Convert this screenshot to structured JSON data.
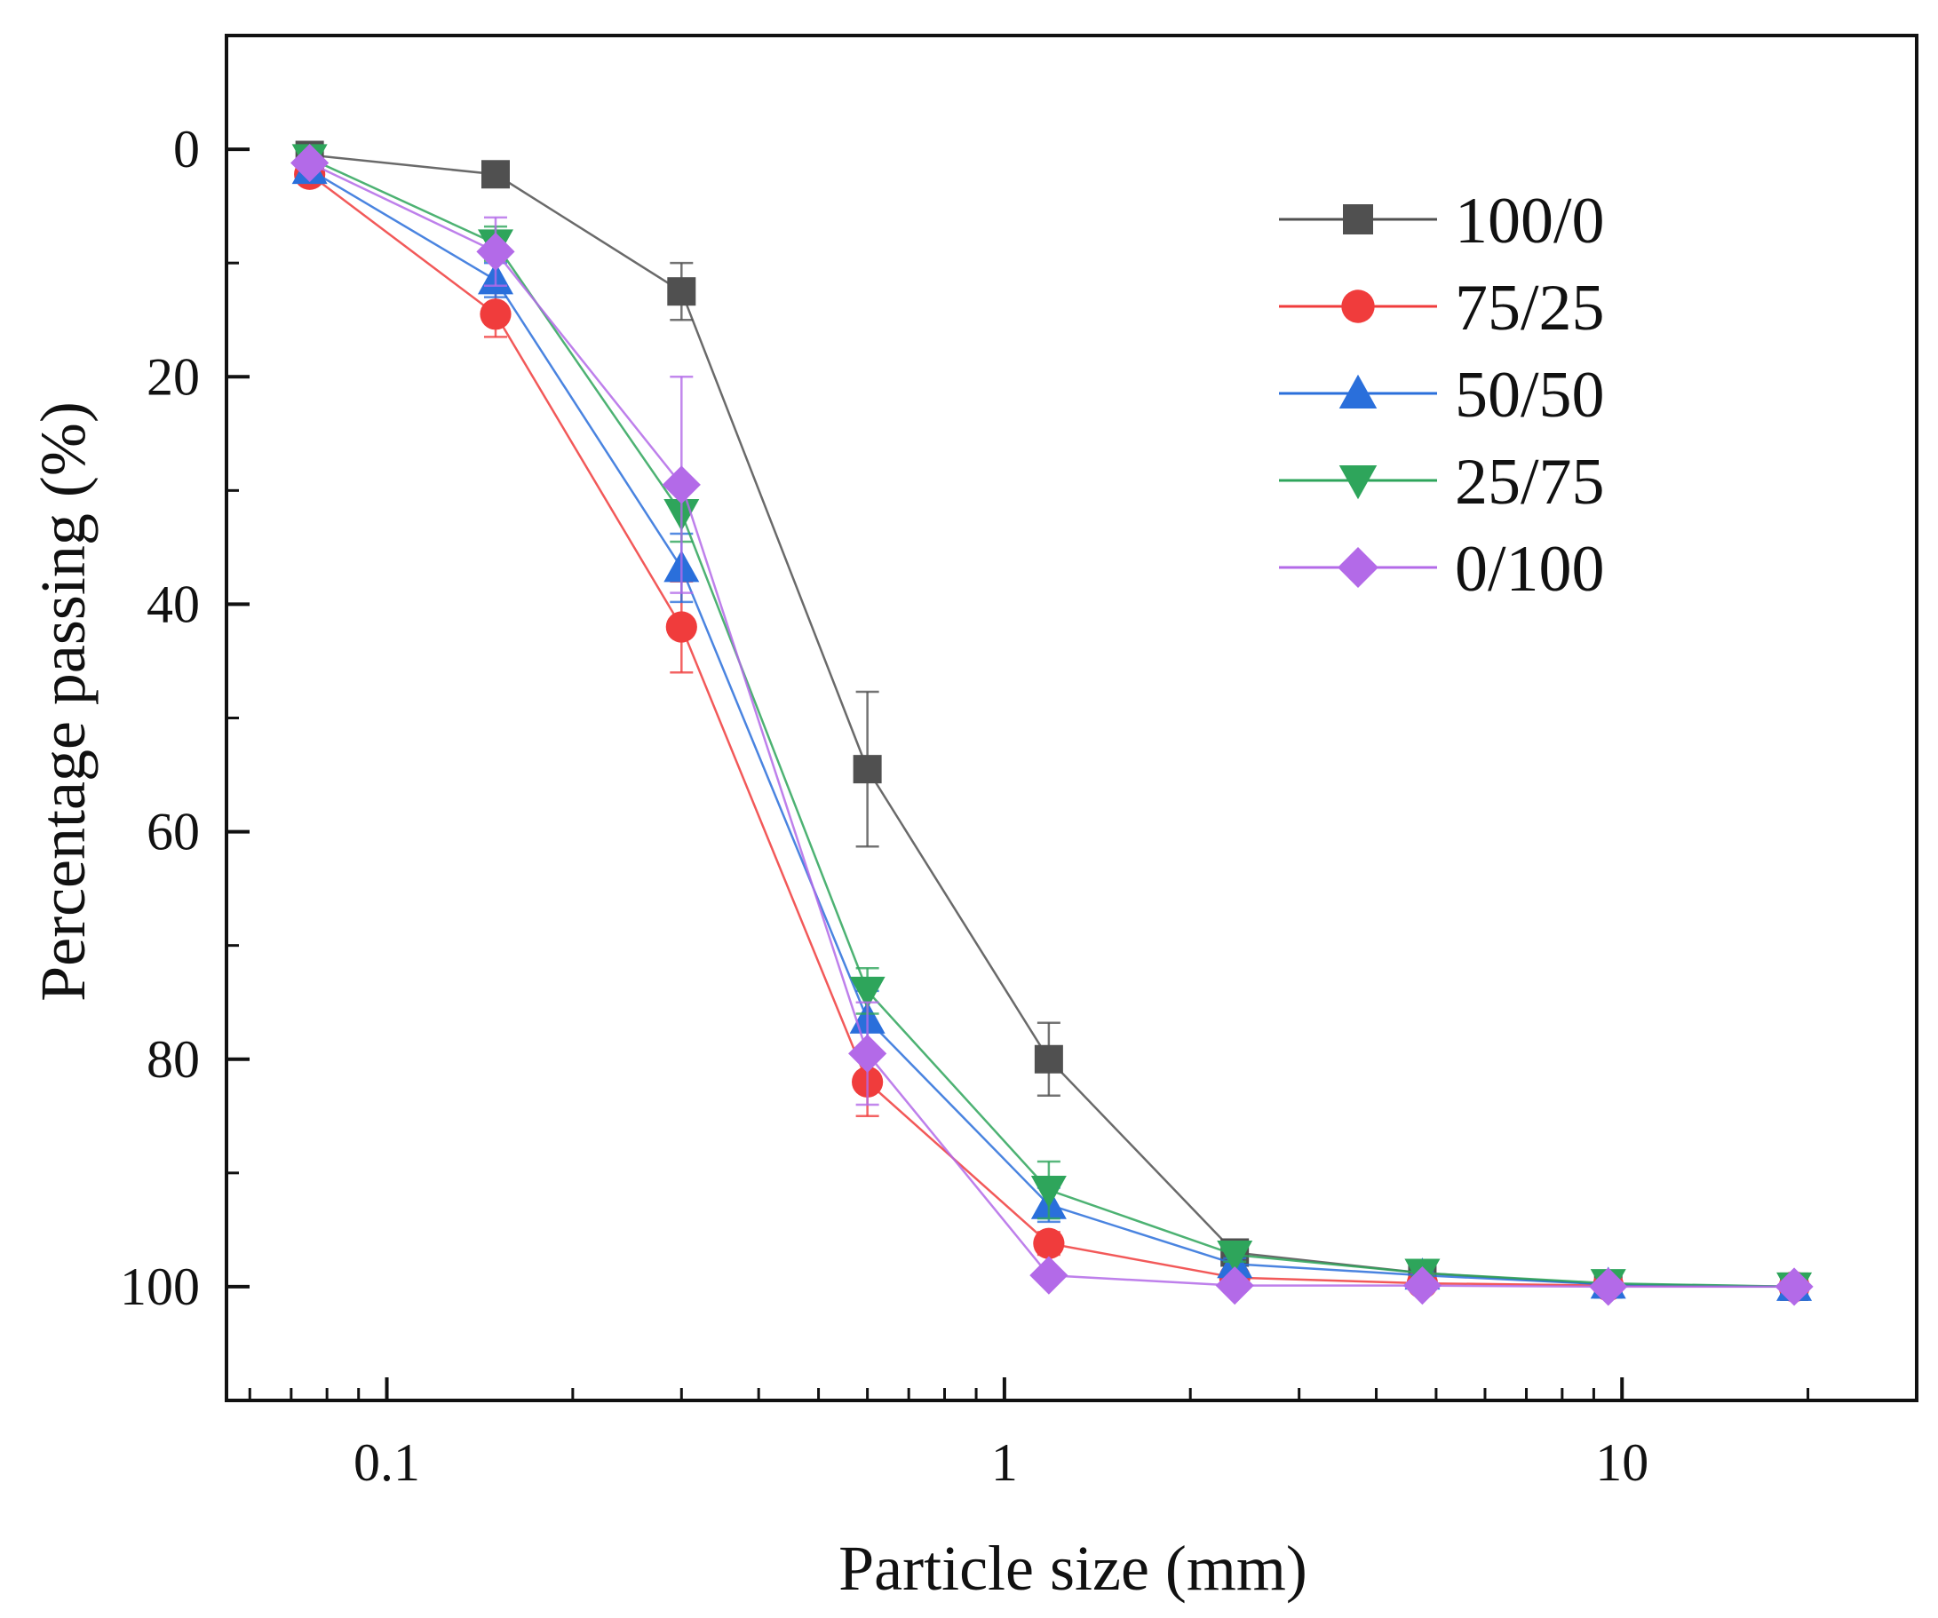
{
  "chart_data": {
    "type": "line",
    "title": "",
    "xlabel": "Particle size (mm)",
    "ylabel": "Percentage passing (%)",
    "x_scale": "log",
    "xlim": [
      0.055,
      30
    ],
    "ylim": [
      -10,
      110
    ],
    "y_inverted": true,
    "grid": false,
    "legend_position": "top-right",
    "x_ticks": [
      "0.1",
      "1",
      "10"
    ],
    "y_ticks": [
      "0",
      "20",
      "40",
      "60",
      "80",
      "100"
    ],
    "x": [
      0.075,
      0.15,
      0.3,
      0.6,
      1.18,
      2.36,
      4.75,
      9.5,
      19
    ],
    "series": [
      {
        "name": "100/0",
        "color": "#505050",
        "marker": "square",
        "values": [
          0.5,
          2.2,
          12.5,
          54.5,
          80.0,
          97.0,
          98.8,
          99.8,
          100
        ],
        "errors": [
          0.5,
          0.5,
          2.5,
          6.8,
          3.2,
          0.8,
          0.5,
          0.3,
          0
        ]
      },
      {
        "name": "75/25",
        "color": "#f03c3c",
        "marker": "circle",
        "values": [
          2.2,
          14.5,
          42.0,
          82.0,
          96.2,
          99.2,
          99.7,
          99.9,
          100
        ],
        "errors": [
          0.5,
          2.0,
          4.0,
          3.0,
          1.0,
          0.5,
          0.3,
          0.2,
          0
        ]
      },
      {
        "name": "50/50",
        "color": "#2a6fdb",
        "marker": "triangle-up",
        "values": [
          1.8,
          11.5,
          36.8,
          76.5,
          92.8,
          98.0,
          99.0,
          99.8,
          100
        ],
        "errors": [
          0.5,
          1.5,
          3.0,
          2.5,
          1.5,
          0.5,
          0.3,
          0.2,
          0
        ]
      },
      {
        "name": "25/75",
        "color": "#2ea55b",
        "marker": "triangle-down",
        "values": [
          0.8,
          8.3,
          32.0,
          74.0,
          91.5,
          97.2,
          98.8,
          99.7,
          100
        ],
        "errors": [
          0.5,
          1.5,
          2.5,
          2.0,
          2.5,
          0.6,
          0.3,
          0.2,
          0
        ]
      },
      {
        "name": "0/100",
        "color": "#b36ae8",
        "marker": "diamond",
        "values": [
          1.2,
          9.0,
          29.5,
          79.5,
          99.0,
          99.9,
          99.9,
          100,
          100
        ],
        "errors": [
          0.5,
          3.0,
          9.5,
          4.5,
          0.5,
          0.2,
          0.2,
          0,
          0
        ]
      }
    ]
  }
}
